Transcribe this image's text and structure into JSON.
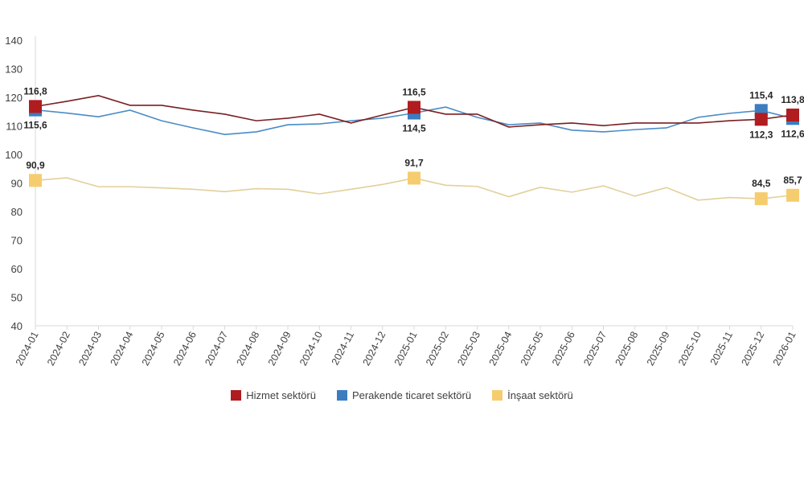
{
  "chart_data": {
    "type": "line",
    "title": "",
    "xlabel": "",
    "ylabel": "",
    "ylim": [
      40,
      140
    ],
    "yticks": [
      40,
      50,
      60,
      70,
      80,
      90,
      100,
      110,
      120,
      130,
      140
    ],
    "grid": false,
    "legend_position": "bottom",
    "x": [
      "2024-01",
      "2024-02",
      "2024-03",
      "2024-04",
      "2024-05",
      "2024-06",
      "2024-07",
      "2024-08",
      "2024-09",
      "2024-10",
      "2024-11",
      "2024-12",
      "2025-01",
      "2025-02",
      "2025-03",
      "2025-04",
      "2025-05",
      "2025-06",
      "2025-07",
      "2025-08",
      "2025-09",
      "2025-10",
      "2025-11",
      "2025-12",
      "2026-01"
    ],
    "series": [
      {
        "name": "Hizmet sektörü",
        "color": "#b01c1f",
        "line_color": "#7a1f22",
        "values": [
          116.8,
          118.6,
          120.6,
          117.2,
          117.2,
          115.5,
          114.1,
          111.8,
          112.7,
          114.1,
          111.0,
          113.8,
          116.5,
          114.1,
          114.1,
          109.6,
          110.4,
          111.0,
          110.1,
          111.0,
          111.0,
          111.0,
          111.8,
          112.3,
          113.8
        ],
        "labels": {
          "0": "116,8",
          "12": "116,5",
          "23": "112,3",
          "24": "113,8"
        }
      },
      {
        "name": "Perakende ticaret sektörü",
        "color": "#3b7dc0",
        "line_color": "#4a8bc6",
        "values": [
          115.6,
          114.5,
          113.2,
          115.5,
          111.8,
          109.3,
          107.0,
          107.9,
          110.4,
          110.7,
          111.8,
          112.7,
          114.5,
          116.6,
          113.0,
          110.4,
          111.0,
          108.5,
          107.9,
          108.7,
          109.3,
          113.0,
          114.4,
          115.4,
          112.6
        ],
        "labels": {
          "0": "115,6",
          "12": "114,5",
          "23": "115,4",
          "24": "112,6"
        }
      },
      {
        "name": "İnşaat sektörü",
        "color": "#f6cd6e",
        "line_color": "#e2cf9a",
        "values": [
          90.9,
          91.8,
          88.7,
          88.7,
          88.3,
          87.8,
          87.0,
          88.0,
          87.8,
          86.2,
          87.8,
          89.5,
          91.7,
          89.2,
          88.8,
          85.2,
          88.5,
          86.8,
          89.0,
          85.4,
          88.4,
          84.0,
          84.9,
          84.5,
          85.7
        ],
        "labels": {
          "0": "90,9",
          "12": "91,7",
          "23": "84,5",
          "24": "85,7"
        }
      }
    ]
  }
}
